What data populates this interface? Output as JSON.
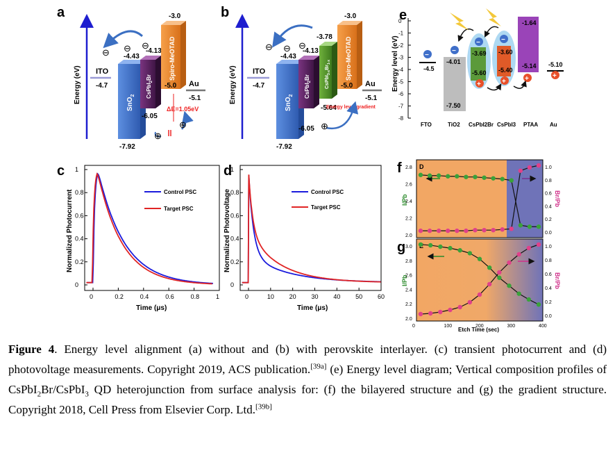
{
  "panels": {
    "a": {
      "letter": "a",
      "ylabel": "Energy (eV)",
      "ito": {
        "name": "ITO",
        "value": "-4.7"
      },
      "sno2": {
        "name": "SnO",
        "sub": "2",
        "top": "-4.43",
        "bottom": "-7.92"
      },
      "cspbi2br": {
        "name": "CsPbI",
        "sub": "2",
        "tail": "Br",
        "top": "-4.13",
        "bottom": "-6.05"
      },
      "spiro": {
        "name": "Spiro-MeOTAD",
        "top": "-3.0",
        "bottom": "-5.0"
      },
      "au": {
        "name": "Au",
        "value": "-5.1"
      },
      "delta": "ΔE=1.05eV",
      "electron": "⊖",
      "hole": "⊕"
    },
    "b": {
      "letter": "b",
      "ylabel": "Energy (eV)",
      "ito": {
        "name": "ITO",
        "value": "-4.7"
      },
      "sno2": {
        "name": "SnO",
        "sub": "2",
        "top": "-4.43",
        "bottom": "-7.92"
      },
      "cspbi2br": {
        "name": "CsPbI",
        "sub": "2",
        "tail": "Br",
        "top": "-4.13",
        "bottom": "-6.05"
      },
      "mixed": {
        "name": "CsPbI",
        "sub": "3-x",
        "tail": "Br",
        "sub2": "1-x",
        "top": "-3.78",
        "bottom": "-5.64"
      },
      "spiro": {
        "name": "Spiro-MeOTAD",
        "top": "-3.0",
        "bottom": "-5.0"
      },
      "au": {
        "name": "Au",
        "value": "-5.1"
      },
      "gradient": "Energy level gradient"
    },
    "c": {
      "letter": "c",
      "ylabel": "Normalized Photocurrent",
      "xlabel": "Time (μs)",
      "xticks": [
        "0",
        "0.2",
        "0.4",
        "0.6",
        "0.8",
        "1"
      ],
      "yticks": [
        "0",
        "0.2",
        "0.4",
        "0.6",
        "0.8",
        "1"
      ],
      "legend": [
        "Control PSC",
        "Target PSC"
      ]
    },
    "d": {
      "letter": "d",
      "ylabel": "Normalized Photovoltage",
      "xlabel": "Time (μs)",
      "xticks": [
        "0",
        "10",
        "20",
        "30",
        "40",
        "50",
        "60"
      ],
      "yticks": [
        "0",
        "0.2",
        "0.4",
        "0.6",
        "0.8",
        "1"
      ],
      "legend": [
        "Control PSC",
        "Target PSC"
      ]
    },
    "e": {
      "letter": "e",
      "ylabel": "Energy level (eV)",
      "yticks": [
        "0",
        "-1",
        "-2",
        "-3",
        "-4",
        "-5",
        "-6",
        "-7",
        "-8"
      ],
      "xlabels": [
        "FTO",
        "TiO2",
        "CsPbI2Br",
        "CsPbI3",
        "PTAA",
        "Au"
      ],
      "values": {
        "fto": "-4.5",
        "tio2_top": "-4.01",
        "tio2_bottom": "-7.50",
        "br_top": "-3.69",
        "br_bottom": "-5.60",
        "i3_top": "-3.60",
        "i3_bottom": "-5.40",
        "ptaa_top": "-1.64",
        "ptaa_bottom": "-5.14",
        "au": "-5.10"
      }
    },
    "f": {
      "letter": "f",
      "tag": "D",
      "ylabel_left": "I/Pb",
      "ylabel_right": "Br/Pb",
      "yticks_left": [
        "2.0",
        "2.2",
        "2.4",
        "2.6",
        "2.8"
      ],
      "yticks_right": [
        "0.0",
        "0.2",
        "0.4",
        "0.6",
        "0.8",
        "1.0"
      ]
    },
    "g": {
      "letter": "g",
      "tag": "E",
      "ylabel_left": "I/Pb",
      "ylabel_right": "Br/Pb",
      "xlabel": "Etch Time (sec)",
      "xticks": [
        "0",
        "100",
        "200",
        "300",
        "400"
      ],
      "yticks_left": [
        "2.0",
        "2.2",
        "2.4",
        "2.6",
        "2.8",
        "3.0"
      ],
      "yticks_right": [
        "0.0",
        "0.2",
        "0.4",
        "0.6",
        "0.8",
        "1.0"
      ]
    }
  },
  "caption": {
    "label": "Figure 4",
    "p1": ". Energy level alignment (a) without and (b) with perovskite interlayer. (c) transient photocurrent and (d) photovoltage measurements. Copyright 2019, ACS publication.",
    "ref1": "[39a]",
    "p2": " (e) Energy level diagram; Vertical composition profiles of CsPbI",
    "sub1": "2",
    "p3": "Br/CsPbI",
    "sub2": "3",
    "p4": " QD heterojunction from surface analysis for: (f) the bilayered structure and (g) the gradient structure. Copyright 2018, Cell Press from Elsevier Corp. Ltd.",
    "ref2": "[39b]"
  },
  "colors": {
    "control": "#1a1adc",
    "target": "#e02424",
    "sno2": "#3f6fc9",
    "cspbi2br": "#5a2360",
    "spiro": "#f08c28",
    "mixed": "#5a9a2c",
    "orange_bg": "#f2a764",
    "blue_bg": "#6f73b8"
  }
}
